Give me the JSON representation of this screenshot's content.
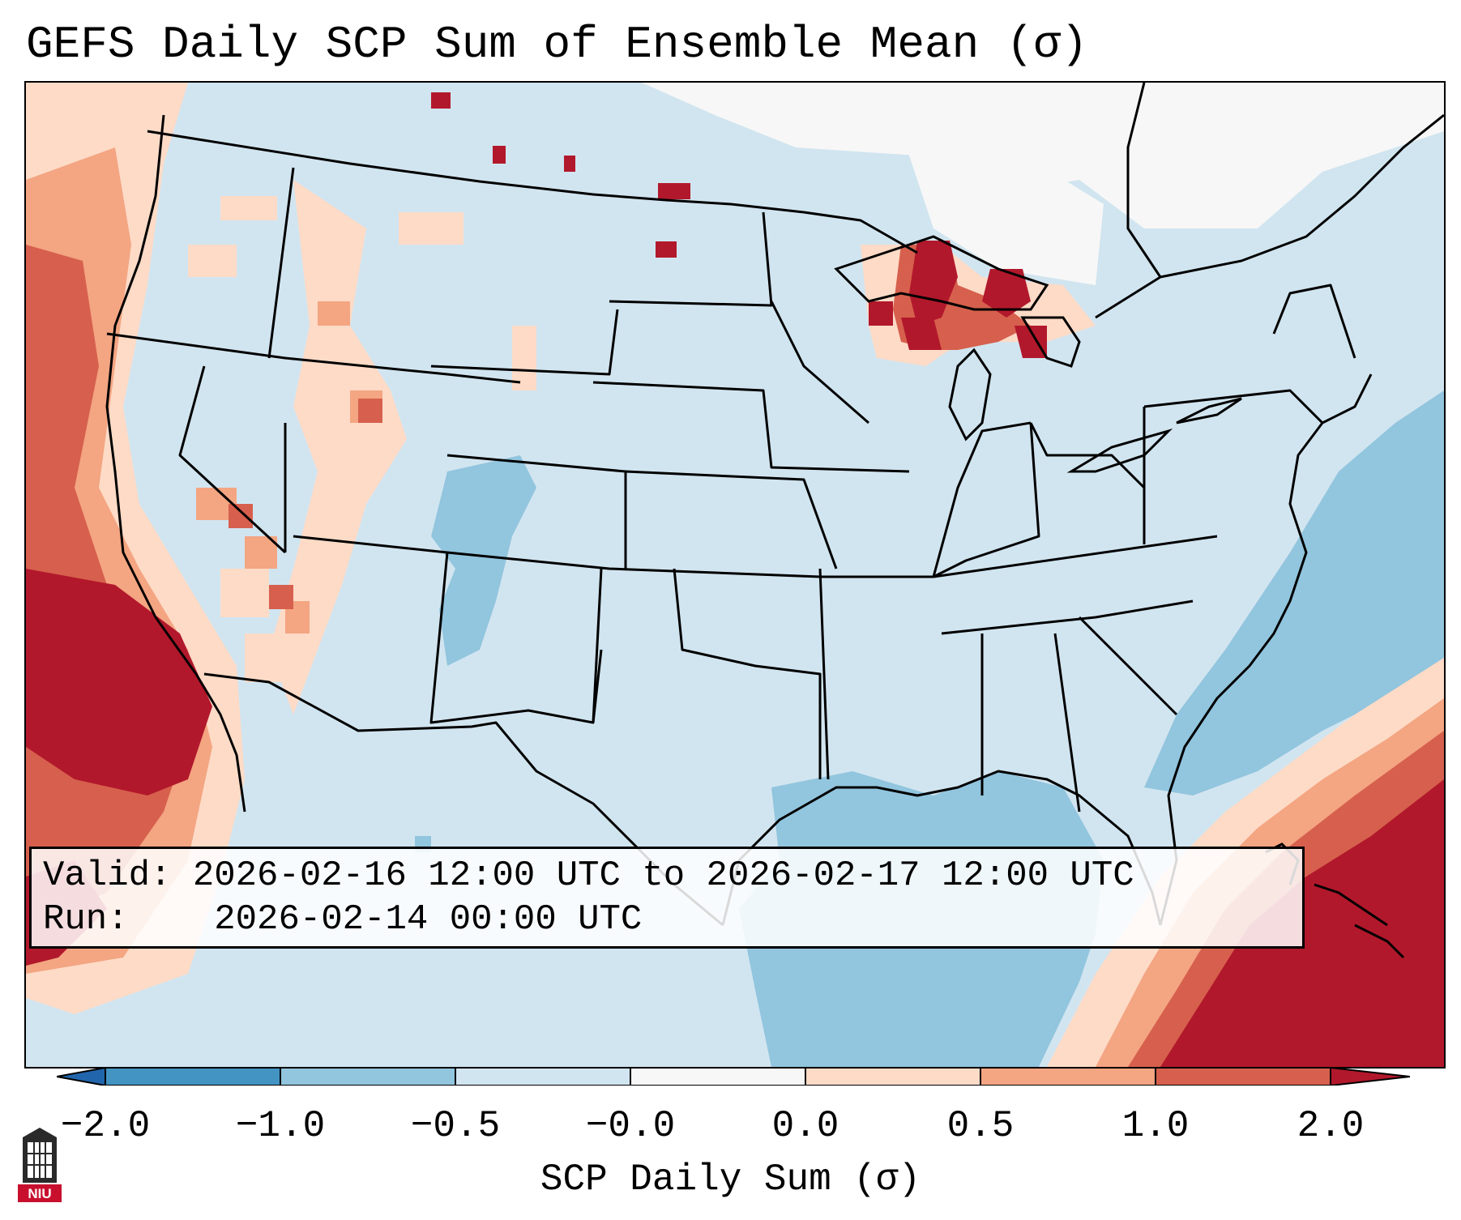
{
  "title": "GEFS Daily SCP Sum of Ensemble Mean (σ)",
  "info": {
    "valid_label": "Valid:",
    "valid_value": "2026-02-16 12:00 UTC to 2026-02-17 12:00 UTC",
    "run_label": "Run:",
    "run_value": "2026-02-14 00:00 UTC"
  },
  "colorbar": {
    "label": "SCP Daily Sum (σ)",
    "ticks": [
      "−2.0",
      "−1.0",
      "−0.5",
      "−0.0",
      "0.0",
      "0.5",
      "1.0",
      "2.0"
    ],
    "colors": {
      "below_min": "#2166ac",
      "n2_n1": "#4393c3",
      "n1_n05": "#92c5de",
      "n05_0": "#d1e5f0",
      "zero": "#f7f7f7",
      "p0_05": "#fddbc7",
      "p05_1": "#f4a582",
      "p1_2": "#d6604d",
      "above_max": "#b2182b"
    }
  },
  "logo_text": "NIU",
  "icons": {
    "logo": "niu-tower-logo-icon"
  }
}
